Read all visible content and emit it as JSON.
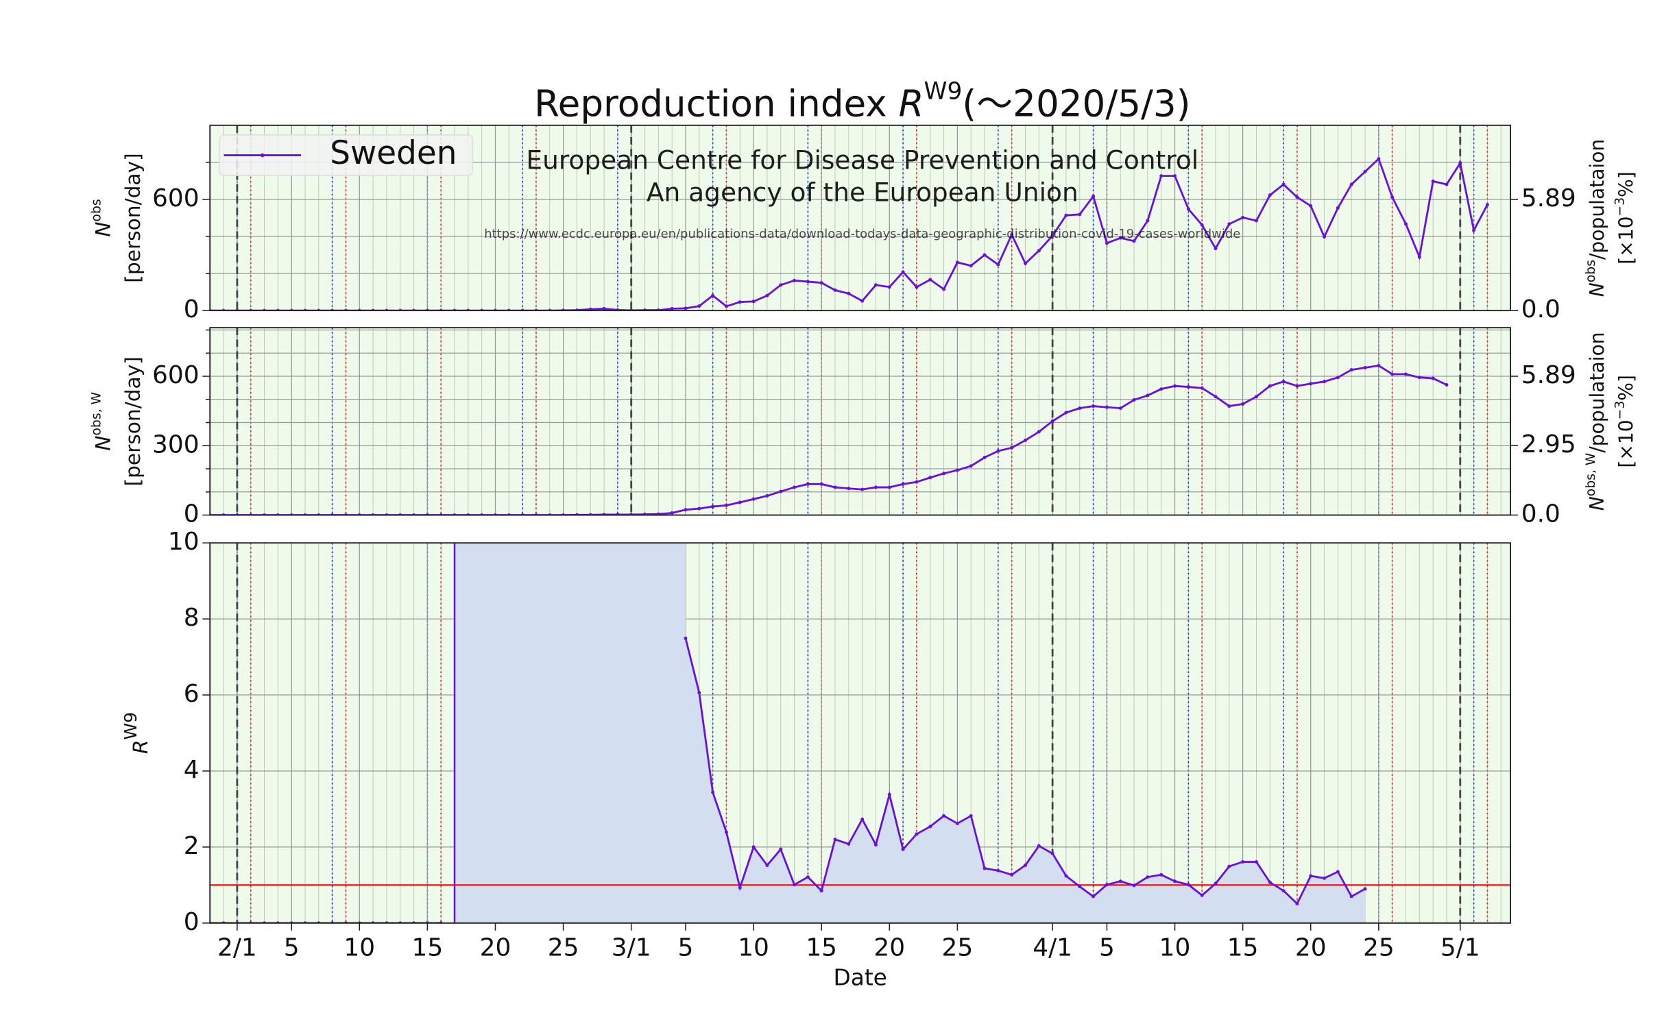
{
  "chart_data": [
    {
      "type": "line",
      "title": {
        "main": "Reproduction index ",
        "italic": "R",
        "sup": "W9",
        "end": "(～2020/5/3)"
      },
      "annotations": [
        "European Centre for Disease Prevention and Control",
        "An agency of the European Union",
        "https://www.ecdc.europa.eu/en/publications-data/download-todays-data-geographic-distribution-covid-19-cases-worldwide"
      ],
      "annotation_color": "#3c9a3c",
      "legend": "upper left",
      "ylabel": {
        "main": "N",
        "sup": "obs",
        "unit": "[person/day]"
      },
      "y2label": {
        "main": "N",
        "sup": "obs",
        "rest": "/populataion",
        "unit": "[×10",
        "unit_sup": "−3",
        "unit_end": "%]"
      },
      "background": "#effbea",
      "x": [
        30,
        31,
        32,
        33,
        34,
        35,
        36,
        37,
        38,
        39,
        40,
        41,
        42,
        43,
        44,
        45,
        46,
        47,
        48,
        49,
        50,
        51,
        52,
        53,
        54,
        55,
        56,
        57,
        58,
        59,
        60,
        61,
        62,
        63,
        64,
        65,
        66,
        67,
        68,
        69,
        70,
        71,
        72,
        73,
        74,
        75,
        76,
        77,
        78,
        79,
        80,
        81,
        82,
        83,
        84,
        85,
        86,
        87,
        88,
        89,
        90,
        91,
        92,
        93,
        94,
        95,
        96,
        97,
        98,
        99,
        100,
        101,
        102,
        103,
        104,
        105,
        106,
        107,
        108,
        109,
        110,
        111,
        112,
        113,
        114,
        115,
        116,
        117,
        118,
        119,
        120,
        121,
        122,
        123,
        124
      ],
      "xlim": [
        30,
        125.7
      ],
      "ylim": [
        0,
        1000
      ],
      "yticks": [
        0,
        600
      ],
      "yminor": [
        200,
        400,
        800
      ],
      "y2lim": [
        0,
        9.82
      ],
      "y2ticks": [
        {
          "value": 0,
          "label": "0.0"
        },
        5.89
      ],
      "series": [
        {
          "name": "Sweden",
          "color": "#6a10dc",
          "values": [
            0,
            0,
            0,
            0,
            0,
            0,
            0,
            0,
            0,
            0,
            0,
            0,
            0,
            0,
            0,
            0,
            0,
            0,
            0,
            0,
            0,
            0,
            0,
            0,
            0,
            0,
            1,
            2,
            7,
            10,
            3,
            1,
            2,
            2,
            10,
            12,
            24,
            81,
            23,
            46,
            49,
            81,
            138,
            162,
            156,
            150,
            110,
            92,
            52,
            138,
            127,
            208,
            127,
            167,
            115,
            260,
            242,
            300,
            248,
            410,
            254,
            323,
            404,
            514,
            519,
            617,
            364,
            392,
            375,
            485,
            727,
            727,
            548,
            462,
            335,
            467,
            502,
            485,
            623,
            681,
            612,
            565,
            398,
            554,
            681,
            750,
            819,
            612,
            467,
            289,
            698,
            681,
            796,
            433,
            571
          ]
        }
      ]
    },
    {
      "type": "line",
      "ylabel": {
        "main": "N",
        "sup": "obs, W",
        "unit": "[person/day]"
      },
      "y2label": {
        "main": "N",
        "sup": "obs, W",
        "rest": "/populataion",
        "unit": "[×10",
        "unit_sup": "−3",
        "unit_end": "%]"
      },
      "background": "#effbea",
      "x": [
        30,
        31,
        32,
        33,
        34,
        35,
        36,
        37,
        38,
        39,
        40,
        41,
        42,
        43,
        44,
        45,
        46,
        47,
        48,
        49,
        50,
        51,
        52,
        53,
        54,
        55,
        56,
        57,
        58,
        59,
        60,
        61,
        62,
        63,
        64,
        65,
        66,
        67,
        68,
        69,
        70,
        71,
        72,
        73,
        74,
        75,
        76,
        77,
        78,
        79,
        80,
        81,
        82,
        83,
        84,
        85,
        86,
        87,
        88,
        89,
        90,
        91,
        92,
        93,
        94,
        95,
        96,
        97,
        98,
        99,
        100,
        101,
        102,
        103,
        104,
        105,
        106,
        107,
        108,
        109,
        110,
        111,
        112,
        113,
        114,
        115,
        116,
        117,
        118,
        119,
        120,
        121,
        122,
        123,
        124
      ],
      "xlim": [
        30,
        125.7
      ],
      "ylim": [
        0,
        810
      ],
      "yticks": [
        0,
        300,
        600
      ],
      "yminor": [
        100,
        200,
        400,
        500,
        700,
        800
      ],
      "y2lim": [
        0,
        7.95
      ],
      "y2ticks": [
        {
          "value": 0,
          "label": "0.0"
        },
        2.95,
        5.89
      ],
      "series": [
        {
          "name": "Sweden",
          "color": "#6a10dc",
          "values": [
            0,
            0,
            0,
            0,
            0,
            0,
            0,
            0,
            0,
            0,
            0,
            0,
            0,
            0,
            0,
            0,
            0,
            0,
            0,
            0,
            0,
            0,
            0,
            0,
            0,
            0,
            0,
            1,
            1,
            2,
            2,
            2,
            3,
            4,
            9,
            23,
            28,
            37,
            42,
            55,
            69,
            83,
            102,
            120,
            134,
            134,
            120,
            115,
            111,
            120,
            120,
            134,
            143,
            162,
            180,
            194,
            212,
            249,
            277,
            291,
            323,
            360,
            406,
            443,
            462,
            471,
            466,
            462,
            498,
            517,
            545,
            558,
            554,
            549,
            512,
            471,
            480,
            512,
            558,
            577,
            558,
            568,
            577,
            595,
            628,
            637,
            646,
            609,
            609,
            595,
            591,
            563,
            null,
            null,
            null
          ]
        }
      ]
    },
    {
      "type": "line",
      "ylabel": {
        "main": "R",
        "sup": "W9"
      },
      "xlabel": "Date",
      "background": "#effbea",
      "fill_under": "#d3dff0",
      "hline": 1,
      "hline_color": "#ee1111",
      "vlines": [
        32,
        61,
        92,
        122
      ],
      "x": [
        30,
        31,
        32,
        33,
        34,
        35,
        36,
        37,
        38,
        39,
        40,
        41,
        42,
        43,
        44,
        45,
        46,
        47,
        48,
        49,
        50,
        51,
        52,
        53,
        54,
        55,
        56,
        57,
        58,
        59,
        60,
        61,
        62,
        63,
        64,
        65,
        66,
        67,
        68,
        69,
        70,
        71,
        72,
        73,
        74,
        75,
        76,
        77,
        78,
        79,
        80,
        81,
        82,
        83,
        84,
        85,
        86,
        87,
        88,
        89,
        90,
        91,
        92,
        93,
        94,
        95,
        96,
        97,
        98,
        99,
        100,
        101,
        102,
        103,
        104,
        105,
        106,
        107,
        108,
        109,
        110,
        111,
        112,
        113,
        114,
        115,
        116,
        117,
        118,
        119,
        120,
        121,
        122,
        123,
        124
      ],
      "xlim": [
        30,
        125.7
      ],
      "xticks": [
        {
          "value": 32,
          "label": "2/1"
        },
        {
          "value": 36,
          "label": "5"
        },
        {
          "value": 41,
          "label": "10"
        },
        {
          "value": 46,
          "label": "15"
        },
        {
          "value": 51,
          "label": "20"
        },
        {
          "value": 56,
          "label": "25"
        },
        {
          "value": 61,
          "label": "3/1"
        },
        {
          "value": 65,
          "label": "5"
        },
        {
          "value": 70,
          "label": "10"
        },
        {
          "value": 75,
          "label": "15"
        },
        {
          "value": 80,
          "label": "20"
        },
        {
          "value": 85,
          "label": "25"
        },
        {
          "value": 92,
          "label": "4/1"
        },
        {
          "value": 96,
          "label": "5"
        },
        {
          "value": 101,
          "label": "10"
        },
        {
          "value": 106,
          "label": "15"
        },
        {
          "value": 111,
          "label": "20"
        },
        {
          "value": 116,
          "label": "25"
        },
        {
          "value": 122,
          "label": "5/1"
        }
      ],
      "ylim": [
        0,
        10
      ],
      "yticks": [
        0,
        2,
        4,
        6,
        8,
        10
      ],
      "series": [
        {
          "name": "Sweden",
          "color": "#6a10dc",
          "values": [
            0,
            0,
            0,
            0,
            0,
            0,
            0,
            0,
            0,
            0,
            0,
            0,
            0,
            0,
            0,
            0,
            0,
            0,
            null,
            null,
            null,
            null,
            null,
            null,
            null,
            null,
            null,
            null,
            null,
            null,
            null,
            null,
            null,
            null,
            null,
            7.49,
            6.06,
            3.44,
            2.39,
            0.93,
            2.0,
            1.52,
            1.94,
            1.01,
            1.21,
            0.85,
            2.2,
            2.08,
            2.73,
            2.06,
            3.38,
            1.94,
            2.34,
            2.54,
            2.82,
            2.62,
            2.82,
            1.44,
            1.38,
            1.27,
            1.52,
            2.03,
            1.83,
            1.24,
            0.96,
            0.7,
            1.01,
            1.1,
            0.99,
            1.21,
            1.27,
            1.1,
            1.01,
            0.73,
            1.04,
            1.49,
            1.61,
            1.61,
            1.07,
            0.85,
            0.51,
            1.24,
            1.18,
            1.35,
            0.7,
            0.9,
            null,
            null,
            null,
            null,
            null,
            null,
            null,
            null,
            null
          ]
        }
      ]
    }
  ]
}
